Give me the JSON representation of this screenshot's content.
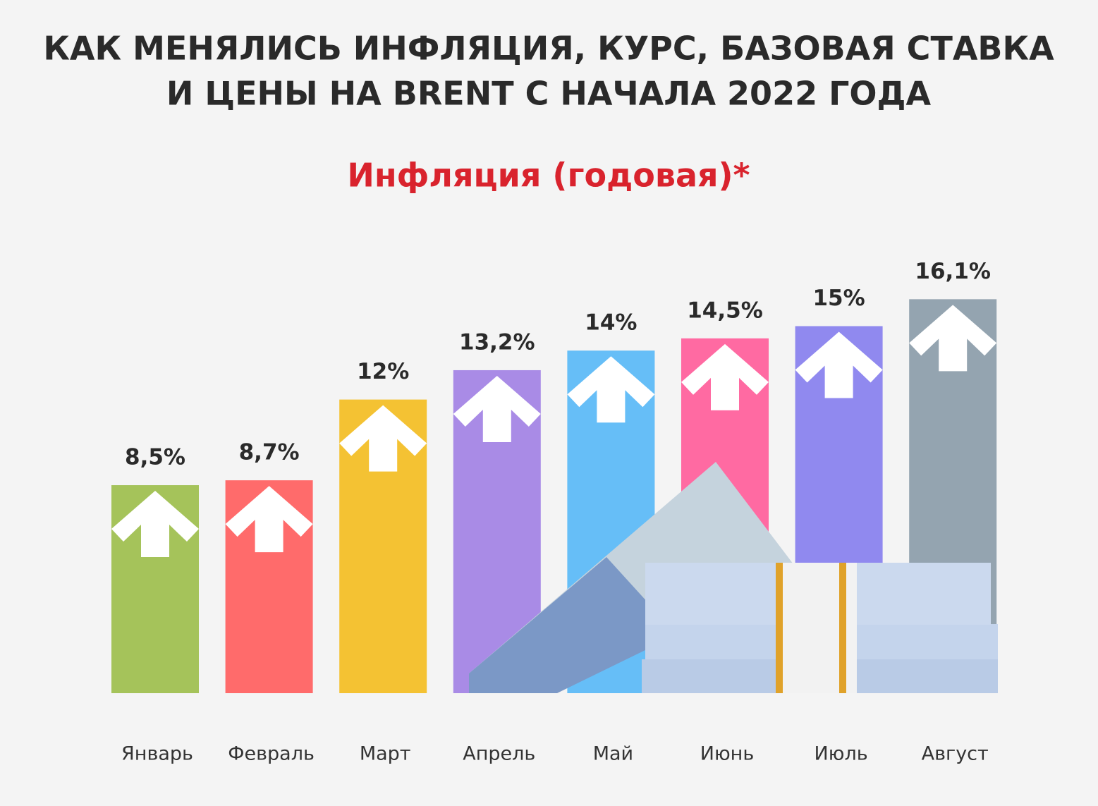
{
  "chart_data": {
    "type": "bar",
    "title": [
      "КАК МЕНЯЛИСЬ ИНФЛЯЦИЯ, КУРС, БАЗОВАЯ СТАВКА",
      "И ЦЕНЫ НА BRENT С НАЧАЛА 2022 ГОДА"
    ],
    "subtitle": "Инфляция (годовая)*",
    "categories": [
      "Январь",
      "Февраль",
      "Март",
      "Апрель",
      "Май",
      "Июнь",
      "Июль",
      "Август"
    ],
    "values": [
      8.5,
      8.7,
      12,
      13.2,
      14,
      14.5,
      15,
      16.1
    ],
    "value_labels": [
      "8,5%",
      "8,7%",
      "12%",
      "13,2%",
      "14%",
      "14,5%",
      "15%",
      "16,1%"
    ],
    "colors": [
      "#a5c35a",
      "#ff6b6b",
      "#f4c233",
      "#a98be6",
      "#66bef7",
      "#ff6aa2",
      "#9089ef",
      "#94a4b0"
    ]
  }
}
